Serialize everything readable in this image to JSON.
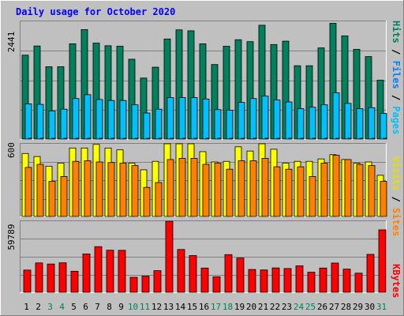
{
  "chart_data": [
    {
      "type": "bar",
      "title": "Daily usage for October 2020",
      "categories": [
        "1",
        "2",
        "3",
        "4",
        "5",
        "6",
        "7",
        "8",
        "9",
        "10",
        "11",
        "12",
        "13",
        "14",
        "15",
        "16",
        "17",
        "18",
        "19",
        "20",
        "21",
        "22",
        "23",
        "24",
        "25",
        "26",
        "27",
        "28",
        "29",
        "30",
        "31"
      ],
      "weekend_days": [
        "3",
        "4",
        "10",
        "11",
        "17",
        "18",
        "24",
        "25",
        "31"
      ],
      "y_max_label": "2441",
      "ylim": [
        0,
        2441
      ],
      "ylabel_parts": [
        "Pages",
        "Files",
        "Hits"
      ],
      "series": [
        {
          "name": "Hits",
          "values": [
            1740,
            1930,
            1500,
            1500,
            1975,
            2270,
            1990,
            1935,
            1925,
            1655,
            1265,
            1490,
            2075,
            2265,
            2245,
            1975,
            1545,
            1925,
            2060,
            2020,
            2360,
            1960,
            2030,
            1520,
            1520,
            1890,
            2400,
            2140,
            1860,
            1710,
            1220
          ]
        },
        {
          "name": "Files",
          "values": [
            730,
            720,
            580,
            620,
            840,
            920,
            820,
            800,
            800,
            710,
            540,
            620,
            860,
            860,
            860,
            830,
            610,
            600,
            760,
            840,
            890,
            810,
            770,
            630,
            660,
            710,
            960,
            740,
            630,
            650,
            530
          ]
        },
        {
          "name": "Pages",
          "values": [
            10,
            10,
            10,
            10,
            10,
            10,
            10,
            10,
            10,
            10,
            10,
            10,
            10,
            10,
            10,
            10,
            10,
            10,
            10,
            10,
            10,
            10,
            10,
            10,
            10,
            10,
            10,
            10,
            10,
            10,
            10
          ]
        }
      ]
    },
    {
      "type": "bar",
      "categories": [
        "1",
        "2",
        "3",
        "4",
        "5",
        "6",
        "7",
        "8",
        "9",
        "10",
        "11",
        "12",
        "13",
        "14",
        "15",
        "16",
        "17",
        "18",
        "19",
        "20",
        "21",
        "22",
        "23",
        "24",
        "25",
        "26",
        "27",
        "28",
        "29",
        "30",
        "31"
      ],
      "y_max_label": "600",
      "ylim": [
        0,
        600
      ],
      "ylabel_parts": [
        "Sites",
        "Visits"
      ],
      "series": [
        {
          "name": "Visits",
          "values": [
            520,
            495,
            415,
            440,
            565,
            565,
            595,
            565,
            550,
            440,
            385,
            455,
            610,
            610,
            610,
            535,
            450,
            455,
            575,
            540,
            600,
            555,
            440,
            455,
            455,
            475,
            510,
            470,
            440,
            450,
            340
          ]
        },
        {
          "name": "Sites",
          "values": [
            405,
            430,
            290,
            330,
            455,
            460,
            450,
            445,
            440,
            420,
            240,
            280,
            470,
            480,
            480,
            430,
            440,
            390,
            460,
            460,
            480,
            410,
            390,
            410,
            330,
            440,
            505,
            470,
            430,
            420,
            290
          ]
        }
      ]
    },
    {
      "type": "bar",
      "categories": [
        "1",
        "2",
        "3",
        "4",
        "5",
        "6",
        "7",
        "8",
        "9",
        "10",
        "11",
        "12",
        "13",
        "14",
        "15",
        "16",
        "17",
        "18",
        "19",
        "20",
        "21",
        "22",
        "23",
        "24",
        "25",
        "26",
        "27",
        "28",
        "29",
        "30",
        "31"
      ],
      "y_max_label": "59789",
      "ylim": [
        0,
        59789
      ],
      "ylabel_parts": [
        "KBytes"
      ],
      "series": [
        {
          "name": "KBytes",
          "values": [
            18700,
            24700,
            23800,
            24800,
            17700,
            32300,
            38400,
            35400,
            35300,
            12600,
            13600,
            18200,
            59700,
            36000,
            30900,
            20400,
            13100,
            31700,
            28800,
            19200,
            18800,
            20500,
            20000,
            22300,
            16900,
            20400,
            24600,
            19500,
            16100,
            31900,
            52500
          ]
        }
      ]
    }
  ],
  "colors": {
    "background": "#c0c0c0",
    "title": "#0000ff",
    "hits": "#00805c",
    "files": "#00c0ff",
    "pages": "#00e0ff",
    "visits": "#ffff00",
    "sites": "#ff8000",
    "kbytes": "#ff0000",
    "weekday_label": "#000000",
    "weekend_label": "#00805c"
  },
  "ylabel_separator": " / "
}
